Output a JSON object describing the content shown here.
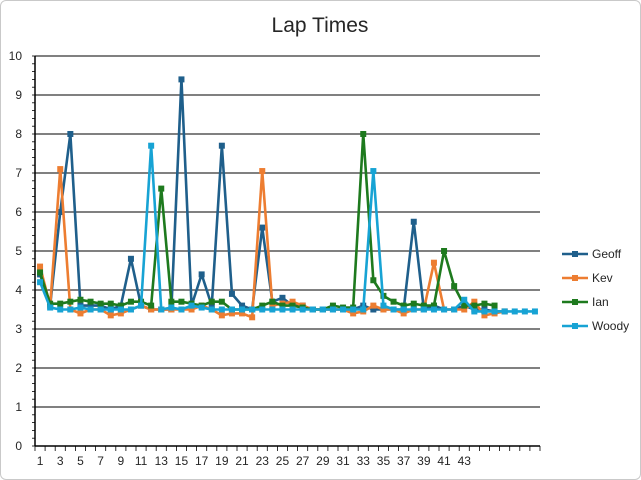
{
  "chart_data": {
    "type": "line",
    "title": "Lap Times",
    "xlabel": "",
    "ylabel": "",
    "ylim": [
      0,
      10
    ],
    "y_ticks": [
      "0",
      "1",
      "2",
      "3",
      "4",
      "5",
      "6",
      "7",
      "8",
      "9",
      "10"
    ],
    "x_tick_labels": [
      "1",
      "3",
      "5",
      "7",
      "9",
      "11",
      "13",
      "15",
      "17",
      "19",
      "21",
      "23",
      "25",
      "27",
      "29",
      "31",
      "33",
      "35",
      "37",
      "39",
      "41",
      "43"
    ],
    "x_count": 50,
    "grid": true,
    "legend_position": "right",
    "series": [
      {
        "name": "Geoff",
        "color": "#1f5f8b",
        "values": [
          4.4,
          3.6,
          6.0,
          8.0,
          3.6,
          3.6,
          3.6,
          3.5,
          3.6,
          4.8,
          3.6,
          3.5,
          3.5,
          3.5,
          9.4,
          3.6,
          4.4,
          3.6,
          7.7,
          3.9,
          3.6,
          3.5,
          5.6,
          3.7,
          3.8,
          3.6,
          3.6,
          3.5,
          3.5,
          3.5,
          3.5,
          3.5,
          3.6,
          3.5,
          3.5,
          3.5,
          3.5,
          5.75,
          3.5,
          3.6,
          3.5,
          3.5,
          3.6,
          3.5,
          3.5,
          3.45,
          3.45
        ]
      },
      {
        "name": "Kev",
        "color": "#ed7d31",
        "values": [
          4.6,
          3.6,
          7.1,
          3.5,
          3.4,
          3.5,
          3.5,
          3.35,
          3.4,
          3.5,
          3.6,
          3.5,
          3.5,
          3.5,
          3.5,
          3.5,
          3.6,
          3.5,
          3.35,
          3.4,
          3.4,
          3.3,
          7.05,
          3.6,
          3.65,
          3.7,
          3.6,
          3.5,
          3.5,
          3.5,
          3.5,
          3.4,
          3.45,
          3.6,
          3.5,
          3.5,
          3.4,
          3.5,
          3.5,
          4.7,
          3.5,
          3.5,
          3.5,
          3.7,
          3.35,
          3.4,
          3.45
        ]
      },
      {
        "name": "Ian",
        "color": "#1e7a1e",
        "values": [
          4.45,
          3.65,
          3.65,
          3.7,
          3.75,
          3.7,
          3.65,
          3.65,
          3.6,
          3.7,
          3.7,
          3.6,
          6.6,
          3.7,
          3.7,
          3.65,
          3.6,
          3.7,
          3.7,
          3.5,
          3.5,
          3.5,
          3.6,
          3.7,
          3.6,
          3.6,
          3.55,
          3.5,
          3.5,
          3.6,
          3.55,
          3.55,
          8.0,
          4.25,
          3.85,
          3.7,
          3.6,
          3.65,
          3.6,
          3.6,
          5.0,
          4.1,
          3.6,
          3.6,
          3.65,
          3.6
        ]
      },
      {
        "name": "Woody",
        "color": "#17a3d4",
        "values": [
          4.2,
          3.55,
          3.5,
          3.5,
          3.55,
          3.5,
          3.5,
          3.5,
          3.5,
          3.5,
          3.6,
          7.7,
          3.5,
          3.55,
          3.5,
          3.6,
          3.55,
          3.5,
          3.5,
          3.5,
          3.5,
          3.5,
          3.5,
          3.5,
          3.5,
          3.5,
          3.5,
          3.5,
          3.5,
          3.5,
          3.5,
          3.5,
          3.5,
          7.05,
          3.6,
          3.5,
          3.5,
          3.5,
          3.5,
          3.5,
          3.5,
          3.5,
          3.75,
          3.45,
          3.45,
          3.45,
          3.45,
          3.45,
          3.45,
          3.45
        ]
      }
    ]
  }
}
